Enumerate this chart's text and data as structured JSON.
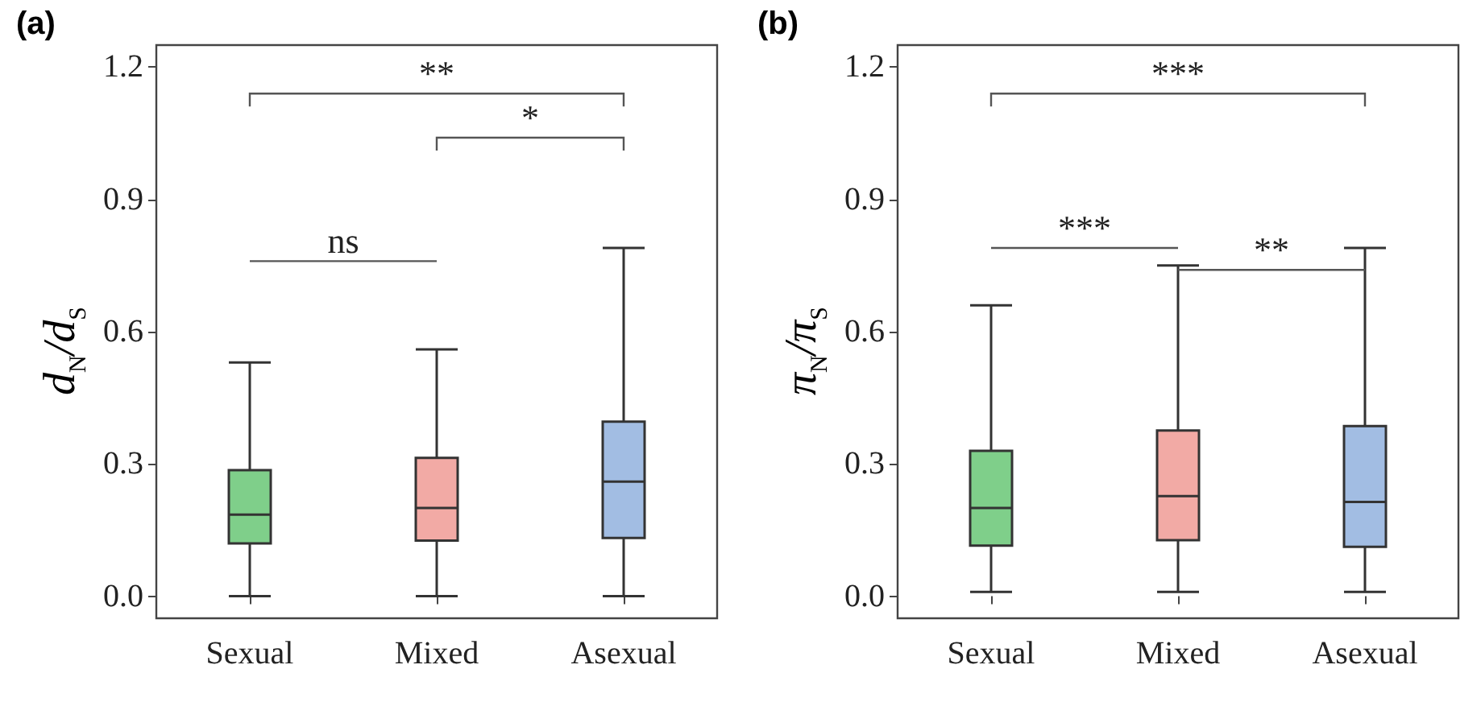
{
  "chart_data": [
    {
      "type": "box",
      "title": "(a)",
      "ylabel": "d$_{N}$/d$_{S}$",
      "categories": [
        "Sexual",
        "Mixed",
        "Asexual"
      ],
      "colors": [
        "#7fcf8a",
        "#f2aaa5",
        "#a2bde3"
      ],
      "boxes": [
        {
          "low": 0,
          "q1": 0.12,
          "median": 0.185,
          "q3": 0.286,
          "high": 0.53
        },
        {
          "low": 0,
          "q1": 0.126,
          "median": 0.2,
          "q3": 0.314,
          "high": 0.56
        },
        {
          "low": 0,
          "q1": 0.132,
          "median": 0.26,
          "q3": 0.396,
          "high": 0.79
        }
      ],
      "ylim": [
        -0.05,
        1.25
      ],
      "yticks": [
        {
          "value": 0,
          "label": "0.0"
        },
        0.3,
        0.6,
        0.9,
        1.2
      ],
      "annotations": [
        "ns",
        "**",
        "*"
      ]
    },
    {
      "type": "box",
      "title": "(b)",
      "ylabel": "π$_{N}$/π$_{S}$",
      "categories": [
        "Sexual",
        "Mixed",
        "Asexual"
      ],
      "colors": [
        "#7fcf8a",
        "#f2aaa5",
        "#a2bde3"
      ],
      "boxes": [
        {
          "low": 0.01,
          "q1": 0.115,
          "median": 0.2,
          "q3": 0.33,
          "high": 0.66
        },
        {
          "low": 0.01,
          "q1": 0.127,
          "median": 0.227,
          "q3": 0.376,
          "high": 0.75
        },
        {
          "low": 0.01,
          "q1": 0.112,
          "median": 0.214,
          "q3": 0.386,
          "high": 0.79
        }
      ],
      "ylim": [
        -0.05,
        1.25
      ],
      "yticks": [
        {
          "value": 0,
          "label": "0.0"
        },
        0.3,
        0.6,
        0.9,
        1.2
      ],
      "annotations": [
        "***",
        "***",
        "**"
      ]
    }
  ]
}
